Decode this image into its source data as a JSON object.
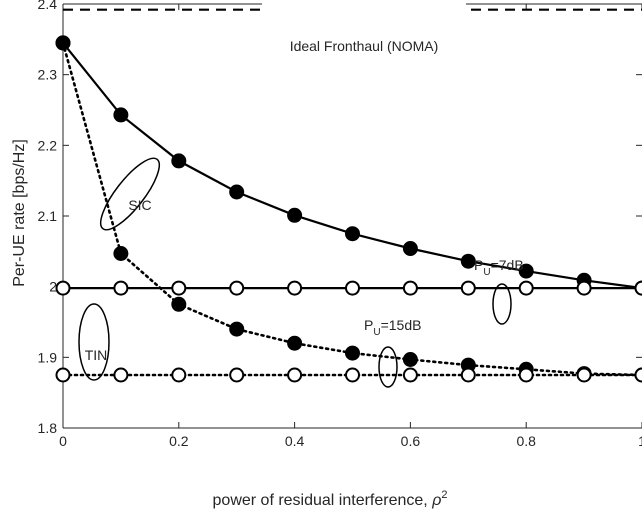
{
  "chart_data": {
    "type": "line",
    "title": "",
    "xlabel": "power of residual interference, ",
    "xlabel_symbol": "ρ",
    "xlabel_superscript": "2",
    "ylabel": "Per-UE rate [bps/Hz]",
    "xlim": [
      0,
      1
    ],
    "ylim": [
      1.8,
      2.4
    ],
    "xticks": [
      0,
      0.2,
      0.4,
      0.6,
      0.8,
      1
    ],
    "xtick_labels": [
      "0",
      "0.2",
      "0.4",
      "0.6",
      "0.8",
      "1"
    ],
    "yticks": [
      1.8,
      1.9,
      2,
      2.1,
      2.2,
      2.3,
      2.4
    ],
    "ytick_labels": [
      "1.8",
      "1.9",
      "2",
      "2.1",
      "2.2",
      "2.3",
      "2.4"
    ],
    "grid": false,
    "x": [
      0,
      0.1,
      0.2,
      0.3,
      0.4,
      0.5,
      0.6,
      0.7,
      0.8,
      0.9,
      1.0
    ],
    "series": [
      {
        "style": "dashed",
        "marker": "none",
        "values": [
          2.392,
          2.392,
          2.392,
          2.392,
          2.392,
          2.392,
          2.392,
          2.392,
          2.392,
          2.392,
          2.392
        ]
      },
      {
        "style": "solid",
        "marker": "filled",
        "values": [
          2.345,
          2.243,
          2.178,
          2.134,
          2.101,
          2.075,
          2.054,
          2.036,
          2.022,
          2.009,
          1.998
        ]
      },
      {
        "style": "solid",
        "marker": "open",
        "values": [
          1.998,
          1.998,
          1.998,
          1.998,
          1.998,
          1.998,
          1.998,
          1.998,
          1.998,
          1.998,
          1.998
        ]
      },
      {
        "style": "dotted",
        "marker": "filled",
        "values": [
          2.345,
          2.047,
          1.975,
          1.94,
          1.92,
          1.906,
          1.897,
          1.889,
          1.883,
          1.877,
          1.875
        ]
      },
      {
        "style": "dotted",
        "marker": "open",
        "values": [
          1.875,
          1.875,
          1.875,
          1.875,
          1.875,
          1.875,
          1.875,
          1.875,
          1.875,
          1.875,
          1.875
        ]
      }
    ],
    "annotations": {
      "ideal": "Ideal Fronthaul (NOMA)",
      "sic": "SIC",
      "tin": "TIN",
      "pu7_prefix": "P",
      "pu7_sub": "U",
      "pu7_value": "=7dB",
      "pu15_prefix": "P",
      "pu15_sub": "U",
      "pu15_value": "=15dB"
    }
  }
}
